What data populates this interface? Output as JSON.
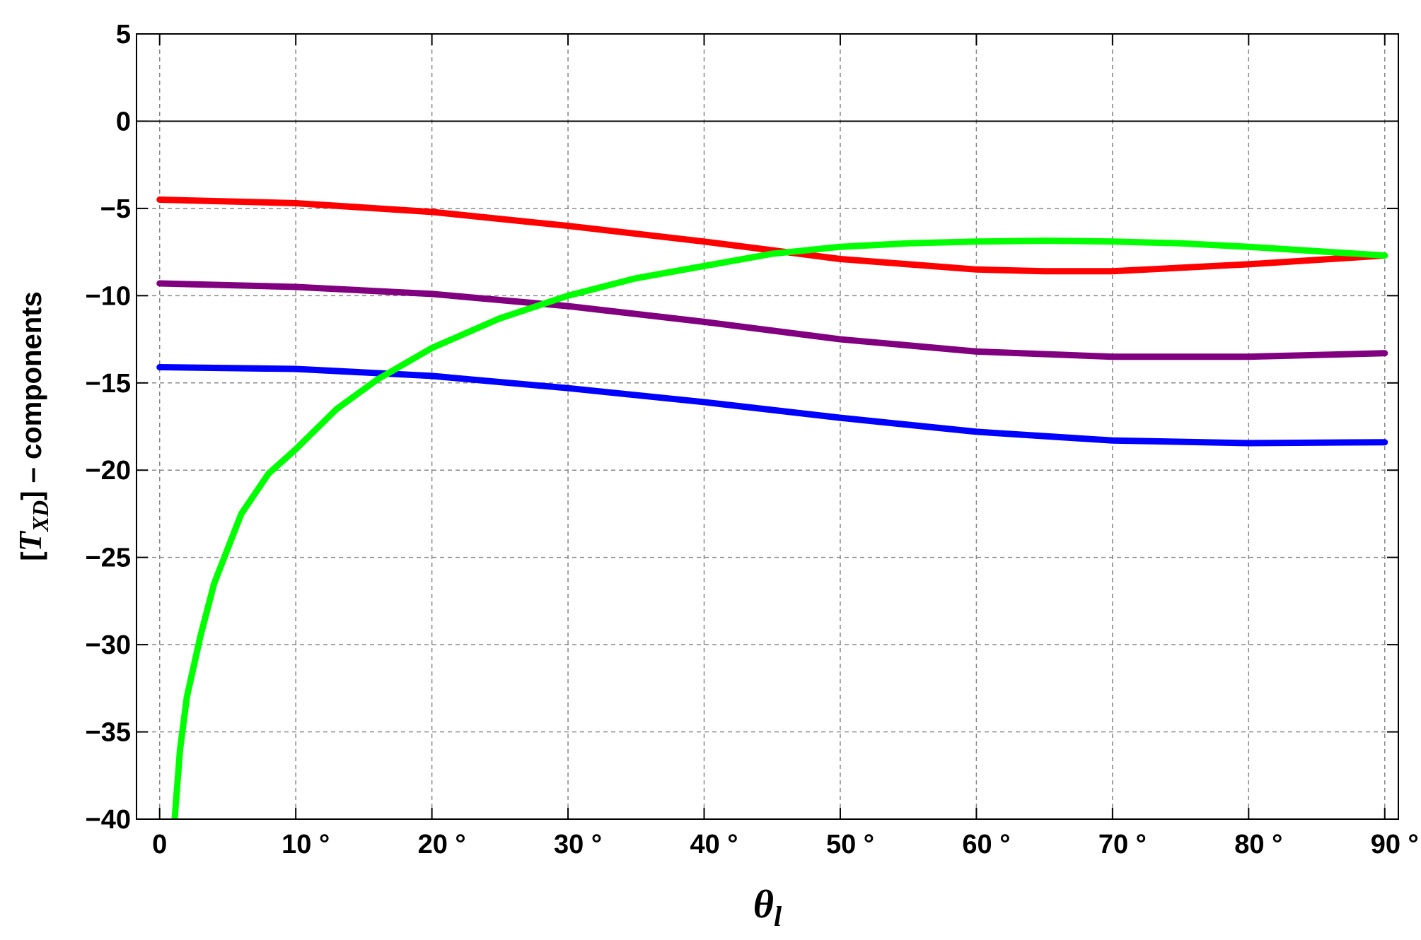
{
  "chart_data": {
    "type": "line",
    "x_label": [
      "θ",
      "l"
    ],
    "y_label": [
      "[",
      "T",
      "XD",
      "] – components"
    ],
    "xlim": [
      -1.7,
      91
    ],
    "ylim": [
      -40,
      5
    ],
    "xticks": [
      0,
      {
        "value": 10,
        "label": "10 °"
      },
      {
        "value": 20,
        "label": "20 °"
      },
      {
        "value": 30,
        "label": "30 °"
      },
      {
        "value": 40,
        "label": "40 °"
      },
      {
        "value": 50,
        "label": "50 °"
      },
      {
        "value": 60,
        "label": "60 °"
      },
      {
        "value": 70,
        "label": "70 °"
      },
      {
        "value": 80,
        "label": "80 °"
      },
      {
        "value": 90,
        "label": "90 °"
      }
    ],
    "yticks": [
      5,
      0,
      {
        "value": -5,
        "label": "−5"
      },
      {
        "value": -10,
        "label": "−10"
      },
      {
        "value": -15,
        "label": "−15"
      },
      {
        "value": -20,
        "label": "−20"
      },
      {
        "value": -25,
        "label": "−25"
      },
      {
        "value": -30,
        "label": "−30"
      },
      {
        "value": -35,
        "label": "−35"
      },
      {
        "value": -40,
        "label": "−40"
      }
    ],
    "grid": true,
    "series": [
      {
        "color": "#ff0000",
        "x": [
          0,
          10,
          20,
          30,
          40,
          45,
          50,
          60,
          65,
          70,
          80,
          90
        ],
        "values": [
          -4.5,
          -4.7,
          -5.2,
          -6.0,
          -6.9,
          -7.4,
          -7.9,
          -8.5,
          -8.6,
          -8.6,
          -8.2,
          -7.7
        ]
      },
      {
        "color": "#800080",
        "x": [
          0,
          10,
          20,
          30,
          40,
          50,
          60,
          70,
          80,
          90
        ],
        "values": [
          -9.3,
          -9.5,
          -9.9,
          -10.6,
          -11.5,
          -12.5,
          -13.2,
          -13.5,
          -13.5,
          -13.3
        ]
      },
      {
        "color": "#0000ff",
        "x": [
          0,
          10,
          20,
          30,
          40,
          50,
          60,
          70,
          80,
          90
        ],
        "values": [
          -14.1,
          -14.2,
          -14.6,
          -15.3,
          -16.1,
          -17.0,
          -17.8,
          -18.3,
          -18.45,
          -18.4
        ]
      },
      {
        "color": "#00ff00",
        "x": [
          1.1,
          1.5,
          2,
          3,
          4,
          6,
          8,
          10,
          13,
          16,
          20,
          25,
          30,
          35,
          40,
          45,
          50,
          55,
          60,
          65,
          70,
          75,
          80,
          85,
          90
        ],
        "values": [
          -40,
          -36,
          -33,
          -29.5,
          -26.5,
          -22.5,
          -20.2,
          -18.8,
          -16.5,
          -14.8,
          -13.0,
          -11.3,
          -10.0,
          -9.0,
          -8.3,
          -7.6,
          -7.2,
          -7.0,
          -6.9,
          -6.85,
          -6.9,
          -7.0,
          -7.2,
          -7.45,
          -7.7
        ]
      }
    ]
  }
}
